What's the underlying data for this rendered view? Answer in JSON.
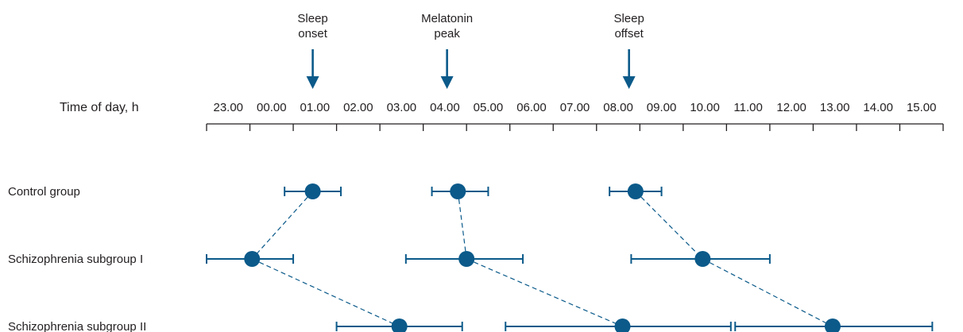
{
  "chart_data": {
    "type": "scatter",
    "title": "",
    "xlabel": "Time of day, h",
    "ylabel": "",
    "x_ticks": [
      "23.00",
      "00.00",
      "01.00",
      "02.00",
      "03.00",
      "04.00",
      "05.00",
      "06.00",
      "07.00",
      "08.00",
      "09.00",
      "10.00",
      "11.00",
      "12.00",
      "13.00",
      "14.00",
      "15.00"
    ],
    "xlim": [
      -1,
      16
    ],
    "markers": [
      {
        "lines": [
          "Sleep",
          "onset"
        ],
        "x": 1.45
      },
      {
        "lines": [
          "Melatonin",
          "peak"
        ],
        "x": 4.55
      },
      {
        "lines": [
          "Sleep",
          "offset"
        ],
        "x": 8.75
      }
    ],
    "groups": [
      "Control group",
      "Schizophrenia subgroup I",
      "Schizophrenia subgroup II"
    ],
    "series": [
      {
        "name": "Sleep onset",
        "points": [
          {
            "group": 0,
            "x": 1.45,
            "err_low": 0.8,
            "err_high": 2.1
          },
          {
            "group": 1,
            "x": 0.05,
            "err_low": -1.0,
            "err_high": 1.0
          },
          {
            "group": 2,
            "x": 3.45,
            "err_low": 2.0,
            "err_high": 4.9
          }
        ]
      },
      {
        "name": "Melatonin peak",
        "points": [
          {
            "group": 0,
            "x": 4.8,
            "err_low": 4.2,
            "err_high": 5.5
          },
          {
            "group": 1,
            "x": 5.0,
            "err_low": 3.6,
            "err_high": 6.3
          },
          {
            "group": 2,
            "x": 8.6,
            "err_low": 5.9,
            "err_high": 11.1
          }
        ]
      },
      {
        "name": "Sleep offset",
        "points": [
          {
            "group": 0,
            "x": 8.9,
            "err_low": 8.3,
            "err_high": 9.5
          },
          {
            "group": 1,
            "x": 10.45,
            "err_low": 8.8,
            "err_high": 12.0
          },
          {
            "group": 2,
            "x": 13.45,
            "err_low": 11.2,
            "err_high": 15.75
          }
        ]
      }
    ],
    "colors": {
      "point": "#0b5a8a",
      "line": "#0b5a8a",
      "axis": "#231f20"
    }
  }
}
